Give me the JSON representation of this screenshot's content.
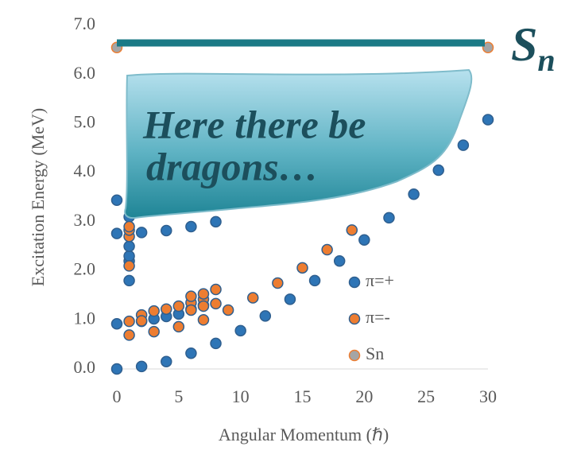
{
  "chart_data": {
    "type": "scatter",
    "xlabel": "Angular Momentum (ℏ)",
    "ylabel": "Excitation Energy (MeV)",
    "xlim": [
      0,
      30
    ],
    "ylim": [
      0,
      7
    ],
    "xticks": [
      0,
      5,
      10,
      15,
      20,
      25,
      30
    ],
    "yticks": [
      {
        "value": 0,
        "label": "0.0"
      },
      {
        "value": 1,
        "label": "1.0"
      },
      {
        "value": 2,
        "label": "2.0"
      },
      {
        "value": 3,
        "label": "3.0"
      },
      {
        "value": 4,
        "label": "4.0"
      },
      {
        "value": 5,
        "label": "5.0"
      },
      {
        "value": 6,
        "label": "6.0"
      },
      {
        "value": 7,
        "label": "7.0"
      }
    ],
    "legend": "right",
    "series": [
      {
        "name": "π=+",
        "color": "#2e75b6",
        "edge": "#2f5f8f",
        "x": [
          0,
          2,
          4,
          6,
          8,
          10,
          12,
          14,
          16,
          18,
          20,
          22,
          24,
          26,
          28,
          30,
          0,
          0,
          0,
          1,
          1,
          1,
          1,
          1,
          2,
          4,
          6,
          8,
          2,
          3,
          4,
          5,
          6,
          7
        ],
        "values": [
          0.0,
          0.05,
          0.15,
          0.32,
          0.52,
          0.78,
          1.08,
          1.42,
          1.8,
          2.2,
          2.63,
          3.08,
          3.56,
          4.05,
          4.56,
          5.08,
          0.92,
          2.76,
          3.44,
          1.8,
          2.2,
          2.3,
          2.5,
          3.1,
          2.78,
          2.82,
          2.9,
          3.0,
          0.97,
          1.02,
          1.07,
          1.12,
          1.22,
          1.3
        ]
      },
      {
        "name": "π=-",
        "color": "#ed7d31",
        "edge": "#2f5f8f",
        "x": [
          1,
          1,
          1,
          1,
          1,
          1,
          2,
          3,
          3,
          4,
          5,
          5,
          6,
          6,
          7,
          7,
          7,
          8,
          8,
          9,
          11,
          13,
          15,
          17,
          19,
          2,
          6,
          7
        ],
        "values": [
          0.97,
          0.69,
          2.1,
          2.7,
          2.83,
          2.9,
          1.1,
          0.76,
          1.18,
          1.22,
          0.86,
          1.28,
          1.35,
          1.48,
          1.0,
          1.42,
          1.53,
          1.33,
          1.62,
          1.2,
          1.45,
          1.75,
          2.06,
          2.43,
          2.83,
          0.98,
          1.2,
          1.28
        ]
      },
      {
        "name": "Sn",
        "color": "#a5a5a5",
        "edge": "#ed7d31",
        "x": [
          0,
          30
        ],
        "values": [
          6.55,
          6.55
        ]
      }
    ],
    "line_label": {
      "base": "S",
      "sub": "n"
    },
    "annotations": [
      "Here there be",
      "dragons…"
    ]
  }
}
